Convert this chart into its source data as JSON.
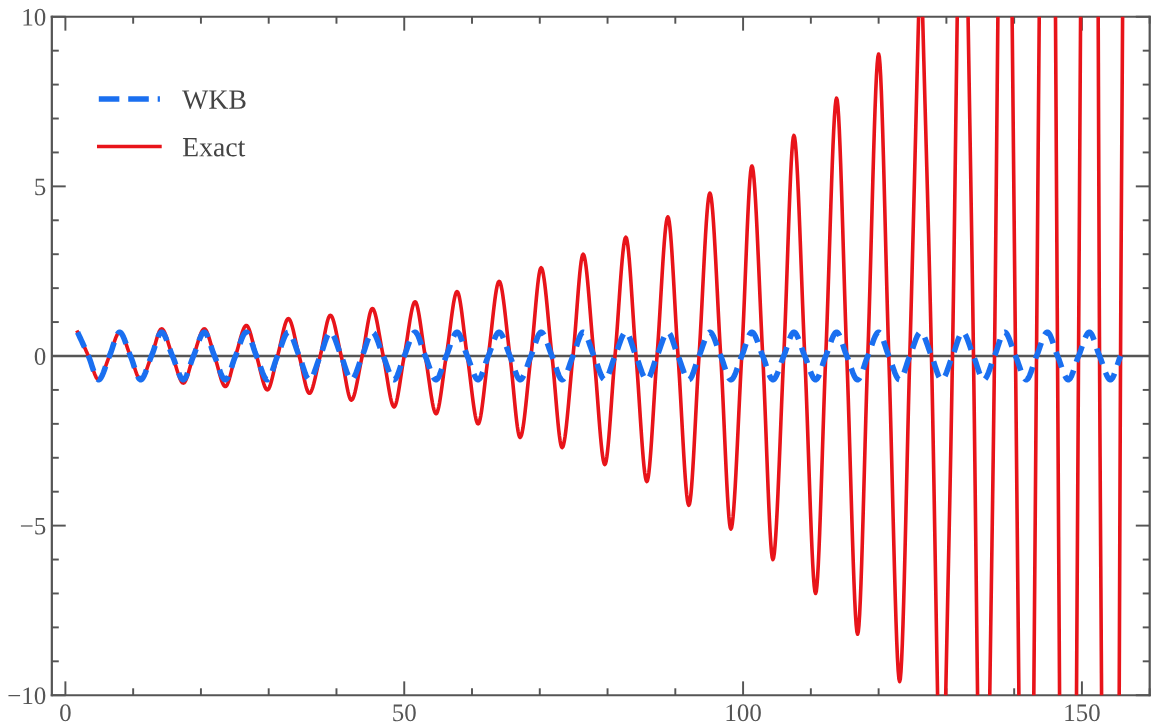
{
  "chart_data": {
    "type": "line",
    "xlim": [
      -2,
      160
    ],
    "xticks": [
      0,
      {
        "value": 10,
        "label": null
      },
      {
        "value": 20,
        "label": null
      },
      {
        "value": 30,
        "label": null
      },
      {
        "value": 40,
        "label": null
      },
      50,
      {
        "value": 60,
        "label": null
      },
      {
        "value": 70,
        "label": null
      },
      {
        "value": 80,
        "label": null
      },
      {
        "value": 90,
        "label": null
      },
      100,
      {
        "value": 110,
        "label": null
      },
      {
        "value": 120,
        "label": null
      },
      {
        "value": 130,
        "label": null
      },
      {
        "value": 140,
        "label": null
      },
      150,
      {
        "value": 160,
        "label": null
      }
    ],
    "ylim": [
      -10,
      10
    ],
    "yticks": [
      {
        "value": -10,
        "label": "−10"
      },
      {
        "value": -9,
        "label": null
      },
      {
        "value": -8,
        "label": null
      },
      {
        "value": -7,
        "label": null
      },
      {
        "value": -6,
        "label": null
      },
      {
        "value": -5,
        "label": "−5"
      },
      {
        "value": -4,
        "label": null
      },
      {
        "value": -3,
        "label": null
      },
      {
        "value": -2,
        "label": null
      },
      {
        "value": -1,
        "label": null
      },
      0,
      {
        "value": 1,
        "label": null
      },
      {
        "value": 2,
        "label": null
      },
      {
        "value": 3,
        "label": null
      },
      {
        "value": 4,
        "label": null
      },
      5,
      {
        "value": 6,
        "label": null
      },
      {
        "value": 7,
        "label": null
      },
      {
        "value": 8,
        "label": null
      },
      {
        "value": 9,
        "label": null
      },
      10
    ],
    "ref_lines": [
      {
        "axis": "y",
        "value": 0,
        "color": "#555555"
      }
    ],
    "legend": "top left",
    "series": [
      {
        "name": "WKB",
        "color": "#1a6ff0",
        "line_style": "dashed",
        "x": [
          1.8,
          3.4,
          4.9,
          6.5,
          8.0,
          9.6,
          11.1,
          12.7,
          14.2,
          15.8,
          17.4,
          18.9,
          20.5,
          22.0,
          23.6,
          25.1,
          26.7,
          28.2,
          29.8,
          31.3,
          32.9,
          34.5,
          36.0,
          37.6,
          39.1,
          40.7,
          42.2,
          43.8,
          45.3,
          46.9,
          48.5,
          50.0,
          51.6,
          53.1,
          54.7,
          56.2,
          57.8,
          59.3,
          60.9,
          62.4,
          64.0,
          65.6,
          67.1,
          68.7,
          70.2,
          71.8,
          73.3,
          74.9,
          76.4,
          78.0,
          79.6,
          81.1,
          82.7,
          84.2,
          85.8,
          87.3,
          88.9,
          90.4,
          92.0,
          93.5,
          95.1,
          96.7,
          98.2,
          99.8,
          101.3,
          102.9,
          104.4,
          106.0,
          107.5,
          109.1,
          110.7,
          112.2,
          113.8,
          115.3,
          116.9,
          118.4,
          120.0,
          121.5,
          123.1,
          124.6,
          126.2,
          127.8,
          129.3,
          130.9,
          132.4,
          134.0,
          135.5,
          137.1,
          138.6,
          140.2,
          141.8,
          143.3,
          144.9,
          146.4,
          148.0,
          149.5,
          151.1,
          152.6,
          154.2,
          155.7
        ],
        "values": [
          0.7,
          0,
          -0.7,
          0,
          0.7,
          0,
          -0.7,
          0,
          0.7,
          0,
          -0.7,
          0,
          0.7,
          0,
          -0.7,
          0,
          0.7,
          0,
          -0.7,
          0,
          0.7,
          0,
          -0.7,
          0,
          0.7,
          0,
          -0.7,
          0,
          0.7,
          0,
          -0.7,
          0,
          0.7,
          0,
          -0.7,
          0,
          0.7,
          0,
          -0.7,
          0,
          0.7,
          0,
          -0.7,
          0,
          0.7,
          0,
          -0.7,
          0,
          0.7,
          0,
          -0.7,
          0,
          0.7,
          0,
          -0.7,
          0,
          0.7,
          0,
          -0.7,
          0,
          0.7,
          0,
          -0.7,
          0,
          0.7,
          0,
          -0.7,
          0,
          0.7,
          0,
          -0.7,
          0,
          0.7,
          0,
          -0.7,
          0,
          0.7,
          0,
          -0.7,
          0,
          0.7,
          0,
          -0.7,
          0,
          0.7,
          0,
          -0.7,
          0,
          0.7,
          0,
          -0.7,
          0,
          0.7,
          0,
          -0.7,
          0,
          0.7,
          0,
          -0.7,
          0
        ]
      },
      {
        "name": "Exact",
        "color": "#e8141a",
        "line_style": "solid",
        "x": [
          1.8,
          3.4,
          4.9,
          6.5,
          8.0,
          9.6,
          11.1,
          12.7,
          14.2,
          15.8,
          17.4,
          18.9,
          20.5,
          22.0,
          23.6,
          25.1,
          26.7,
          28.2,
          29.8,
          31.3,
          32.9,
          34.5,
          36.0,
          37.6,
          39.1,
          40.7,
          42.2,
          43.8,
          45.3,
          46.9,
          48.5,
          50.0,
          51.6,
          53.1,
          54.7,
          56.2,
          57.8,
          59.3,
          60.9,
          62.4,
          64.0,
          65.6,
          67.1,
          68.7,
          70.2,
          71.8,
          73.3,
          74.9,
          76.4,
          78.0,
          79.6,
          81.1,
          82.7,
          84.2,
          85.8,
          87.3,
          88.9,
          90.4,
          92.0,
          93.5,
          95.1,
          96.7,
          98.2,
          99.8,
          101.3,
          102.9,
          104.4,
          106.0,
          107.5,
          109.1,
          110.7,
          112.2,
          113.8,
          115.3,
          116.9,
          118.4,
          120.0,
          121.5,
          123.1,
          124.6,
          125.9,
          126.2,
          126.5,
          127.8,
          128.7,
          129.3,
          129.9,
          130.9,
          131.6,
          132.4,
          133.2,
          134.0,
          134.6,
          135.5,
          136.4,
          137.1,
          137.6,
          138.6,
          139.7,
          140.2,
          140.7,
          141.8,
          142.9,
          143.3,
          143.7,
          144.9,
          146.1,
          146.4,
          146.7,
          148.0,
          149.2,
          149.5,
          149.8,
          151.1,
          152.4,
          152.6,
          152.9,
          154.2,
          155.5,
          155.7,
          156.0
        ],
        "values": [
          0.7,
          0,
          -0.7,
          0,
          0.7,
          0,
          -0.7,
          0,
          0.8,
          0,
          -0.8,
          0,
          0.8,
          0,
          -0.9,
          0,
          0.9,
          0,
          -1.0,
          0,
          1.1,
          0,
          -1.1,
          0,
          1.2,
          0,
          -1.3,
          0,
          1.4,
          0,
          -1.5,
          0,
          1.6,
          0,
          -1.7,
          0,
          1.9,
          0,
          -2.0,
          0,
          2.2,
          0,
          -2.4,
          0,
          2.6,
          0,
          -2.7,
          0,
          3.0,
          0,
          -3.2,
          0,
          3.5,
          0,
          -3.7,
          0,
          4.1,
          0,
          -4.4,
          0,
          4.8,
          0,
          -5.1,
          0,
          5.6,
          0,
          -6.0,
          0,
          6.5,
          0,
          -7.0,
          0,
          7.6,
          0,
          -8.2,
          0,
          8.9,
          0,
          -9.6,
          0,
          10,
          null,
          10,
          0,
          -10,
          null,
          -10,
          0,
          10,
          null,
          10,
          0,
          -10,
          null,
          -10,
          0,
          10,
          null,
          10,
          0,
          -10,
          null,
          -10,
          0,
          10,
          null,
          10,
          0,
          -10,
          null,
          -10,
          0,
          10,
          null,
          10,
          0,
          -10,
          null,
          -10,
          0,
          10
        ]
      }
    ]
  }
}
